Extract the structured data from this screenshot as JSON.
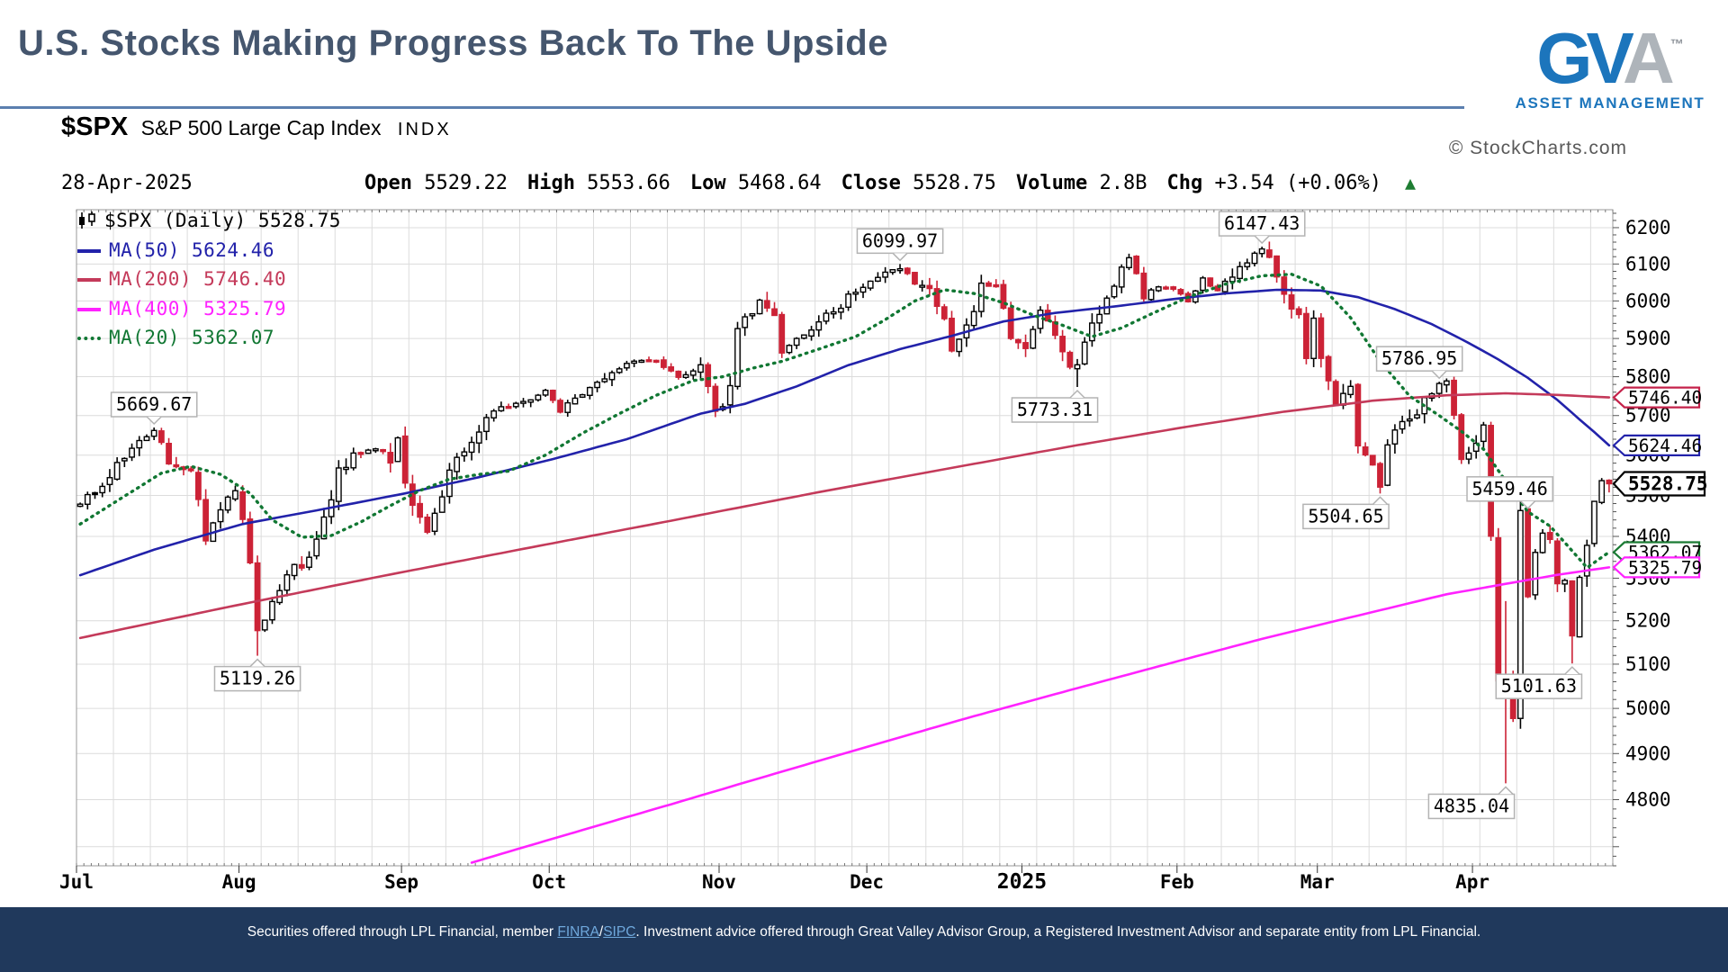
{
  "slide": {
    "title": "U.S. Stocks Making Progress Back To The Upside",
    "accent_color": "#45566E",
    "divider_color": "#5B7FAF"
  },
  "logo": {
    "letters": [
      "G",
      "V",
      "A"
    ],
    "tm": "™",
    "subtext": "ASSET MANAGEMENT",
    "blue": "#1C75BC",
    "gray": "#AEB4BA"
  },
  "chart": {
    "symbol": "$SPX",
    "name": "S&P 500 Large Cap Index",
    "exchange": "INDX",
    "attribution": "© StockCharts.com",
    "quote": {
      "date": "28-Apr-2025",
      "items": [
        {
          "label": "Open",
          "value": "5529.22"
        },
        {
          "label": "High",
          "value": "5553.66"
        },
        {
          "label": "Low",
          "value": "5468.64"
        },
        {
          "label": "Close",
          "value": "5528.75"
        },
        {
          "label": "Volume",
          "value": "2.8B"
        },
        {
          "label": "Chg",
          "value": "+3.54 (+0.06%)"
        }
      ],
      "arrow": "▲",
      "arrow_color": "#1E7D32"
    },
    "legend": {
      "series_label": "$SPX (Daily)",
      "series_value": "5528.75"
    }
  },
  "chart_data": {
    "type": "candlestick",
    "scale": "log",
    "title": "$SPX S&P 500 Large Cap Index (Daily) with 20/50/200/400-day moving averages, Jul 2024 – 28-Apr-2025",
    "ylim": [
      4660,
      6250
    ],
    "y_labels": {
      "from": 4800,
      "to": 6200,
      "step": 100
    },
    "num_days": 208,
    "grid_color": "#DCDCDC",
    "frame_color": "#999999",
    "months": [
      {
        "day": 0,
        "label": "Jul"
      },
      {
        "day": 22,
        "label": "Aug"
      },
      {
        "day": 44,
        "label": "Sep"
      },
      {
        "day": 64,
        "label": "Oct"
      },
      {
        "day": 87,
        "label": "Nov"
      },
      {
        "day": 107,
        "label": "Dec"
      },
      {
        "day": 128,
        "label": "2025",
        "bold": true
      },
      {
        "day": 149,
        "label": "Feb"
      },
      {
        "day": 168,
        "label": "Mar"
      },
      {
        "day": 189,
        "label": "Apr"
      }
    ],
    "close_anchors": [
      [
        0,
        5475
      ],
      [
        2,
        5510
      ],
      [
        5,
        5572
      ],
      [
        8,
        5633
      ],
      [
        10,
        5667
      ],
      [
        12,
        5588
      ],
      [
        15,
        5556
      ],
      [
        17,
        5399
      ],
      [
        19,
        5463
      ],
      [
        21,
        5522
      ],
      [
        22,
        5446
      ],
      [
        23,
        5346
      ],
      [
        24,
        5186
      ],
      [
        26,
        5240
      ],
      [
        28,
        5319
      ],
      [
        31,
        5344
      ],
      [
        33,
        5434
      ],
      [
        35,
        5555
      ],
      [
        37,
        5597
      ],
      [
        40,
        5616
      ],
      [
        42,
        5592
      ],
      [
        43,
        5648
      ],
      [
        44,
        5528
      ],
      [
        47,
        5408
      ],
      [
        50,
        5554
      ],
      [
        52,
        5618
      ],
      [
        56,
        5713
      ],
      [
        58,
        5722
      ],
      [
        61,
        5738
      ],
      [
        63,
        5762
      ],
      [
        65,
        5710
      ],
      [
        67,
        5751
      ],
      [
        70,
        5780
      ],
      [
        73,
        5815
      ],
      [
        75,
        5842
      ],
      [
        78,
        5841
      ],
      [
        81,
        5797
      ],
      [
        84,
        5832
      ],
      [
        86,
        5705
      ],
      [
        87,
        5712
      ],
      [
        88,
        5783
      ],
      [
        89,
        5929
      ],
      [
        91,
        5974
      ],
      [
        92,
        6001
      ],
      [
        94,
        5949
      ],
      [
        95,
        5871
      ],
      [
        98,
        5917
      ],
      [
        100,
        5949
      ],
      [
        103,
        5987
      ],
      [
        105,
        6032
      ],
      [
        107,
        6047
      ],
      [
        109,
        6075
      ],
      [
        111,
        6090
      ],
      [
        113,
        6052
      ],
      [
        115,
        6035
      ],
      [
        117,
        5947
      ],
      [
        118,
        5872
      ],
      [
        120,
        5931
      ],
      [
        122,
        6037
      ],
      [
        124,
        6040
      ],
      [
        126,
        5907
      ],
      [
        128,
        5869
      ],
      [
        130,
        5976
      ],
      [
        132,
        5918
      ],
      [
        134,
        5827
      ],
      [
        135,
        5836
      ],
      [
        137,
        5950
      ],
      [
        139,
        5996
      ],
      [
        141,
        6101
      ],
      [
        142,
        6118
      ],
      [
        144,
        6012
      ],
      [
        146,
        6039
      ],
      [
        148,
        6038
      ],
      [
        150,
        5994
      ],
      [
        152,
        6061
      ],
      [
        154,
        6026
      ],
      [
        156,
        6066
      ],
      [
        158,
        6114
      ],
      [
        160,
        6144
      ],
      [
        161,
        6130
      ],
      [
        163,
        6013
      ],
      [
        165,
        5956
      ],
      [
        166,
        5861
      ],
      [
        167,
        5954
      ],
      [
        168,
        5850
      ],
      [
        170,
        5738
      ],
      [
        172,
        5770
      ],
      [
        173,
        5615
      ],
      [
        175,
        5572
      ],
      [
        176,
        5521
      ],
      [
        177,
        5638
      ],
      [
        179,
        5675
      ],
      [
        181,
        5712
      ],
      [
        183,
        5767
      ],
      [
        184,
        5777
      ],
      [
        185,
        5776
      ],
      [
        186,
        5712
      ],
      [
        187,
        5581
      ],
      [
        188,
        5612
      ],
      [
        190,
        5671
      ],
      [
        191,
        5396
      ],
      [
        192,
        5074
      ],
      [
        193,
        5062
      ],
      [
        194,
        4983
      ],
      [
        195,
        5457
      ],
      [
        196,
        5268
      ],
      [
        197,
        5363
      ],
      [
        198,
        5406
      ],
      [
        199,
        5397
      ],
      [
        200,
        5276
      ],
      [
        201,
        5283
      ],
      [
        202,
        5158
      ],
      [
        203,
        5288
      ],
      [
        204,
        5376
      ],
      [
        205,
        5484
      ],
      [
        206,
        5525
      ],
      [
        207,
        5528.75
      ]
    ],
    "wick_overrides": {
      "10": {
        "high": 5669.67
      },
      "24": {
        "low": 5119.26
      },
      "111": {
        "high": 6099.97
      },
      "135": {
        "low": 5773.31
      },
      "160": {
        "high": 6147.43
      },
      "176": {
        "low": 5504.65
      },
      "184": {
        "high": 5786.95
      },
      "193": {
        "low": 4835.04,
        "high": 5246
      },
      "196": {
        "high": 5459.46
      },
      "202": {
        "low": 5101.63
      }
    },
    "moving_averages": [
      {
        "name": "MA(50)",
        "value": "5624.46",
        "color": "#2222AA",
        "style": "solid",
        "anchors": [
          [
            0,
            5307
          ],
          [
            10,
            5368
          ],
          [
            22,
            5430
          ],
          [
            34,
            5470
          ],
          [
            44,
            5505
          ],
          [
            54,
            5545
          ],
          [
            64,
            5590
          ],
          [
            74,
            5640
          ],
          [
            84,
            5705
          ],
          [
            90,
            5730
          ],
          [
            97,
            5775
          ],
          [
            104,
            5830
          ],
          [
            111,
            5872
          ],
          [
            118,
            5907
          ],
          [
            125,
            5945
          ],
          [
            132,
            5968
          ],
          [
            140,
            5985
          ],
          [
            148,
            6005
          ],
          [
            155,
            6020
          ],
          [
            162,
            6030
          ],
          [
            168,
            6028
          ],
          [
            173,
            6010
          ],
          [
            178,
            5978
          ],
          [
            183,
            5938
          ],
          [
            188,
            5888
          ],
          [
            192,
            5845
          ],
          [
            196,
            5797
          ],
          [
            200,
            5740
          ],
          [
            203,
            5690
          ],
          [
            205,
            5658
          ],
          [
            207,
            5624.46
          ]
        ]
      },
      {
        "name": "MA(200)",
        "value": "5746.40",
        "color": "#C43A5A",
        "style": "solid",
        "anchors": [
          [
            0,
            5160
          ],
          [
            20,
            5232
          ],
          [
            40,
            5302
          ],
          [
            60,
            5370
          ],
          [
            80,
            5438
          ],
          [
            100,
            5508
          ],
          [
            118,
            5568
          ],
          [
            135,
            5625
          ],
          [
            150,
            5672
          ],
          [
            163,
            5710
          ],
          [
            175,
            5738
          ],
          [
            185,
            5752
          ],
          [
            193,
            5757
          ],
          [
            200,
            5753
          ],
          [
            207,
            5746.4
          ]
        ]
      },
      {
        "name": "MA(400)",
        "value": "5325.79",
        "color": "#FF22FF",
        "style": "solid",
        "anchors": [
          [
            45,
            4630
          ],
          [
            80,
            4790
          ],
          [
            120,
            4978
          ],
          [
            160,
            5158
          ],
          [
            185,
            5262
          ],
          [
            200,
            5308
          ],
          [
            207,
            5325.79
          ]
        ]
      },
      {
        "name": "MA(20)",
        "value": "5362.07",
        "color": "#117733",
        "style": "dotted",
        "anchors": [
          [
            0,
            5430
          ],
          [
            6,
            5498
          ],
          [
            11,
            5555
          ],
          [
            15,
            5572
          ],
          [
            19,
            5552
          ],
          [
            23,
            5505
          ],
          [
            26,
            5440
          ],
          [
            30,
            5398
          ],
          [
            34,
            5402
          ],
          [
            38,
            5435
          ],
          [
            42,
            5475
          ],
          [
            46,
            5512
          ],
          [
            50,
            5540
          ],
          [
            54,
            5552
          ],
          [
            58,
            5560
          ],
          [
            63,
            5600
          ],
          [
            68,
            5655
          ],
          [
            73,
            5705
          ],
          [
            78,
            5752
          ],
          [
            83,
            5790
          ],
          [
            87,
            5800
          ],
          [
            91,
            5822
          ],
          [
            95,
            5840
          ],
          [
            100,
            5872
          ],
          [
            105,
            5905
          ],
          [
            109,
            5950
          ],
          [
            113,
            6000
          ],
          [
            117,
            6030
          ],
          [
            121,
            6020
          ],
          [
            125,
            5995
          ],
          [
            129,
            5962
          ],
          [
            133,
            5935
          ],
          [
            137,
            5905
          ],
          [
            141,
            5928
          ],
          [
            145,
            5965
          ],
          [
            150,
            6010
          ],
          [
            155,
            6045
          ],
          [
            160,
            6068
          ],
          [
            164,
            6072
          ],
          [
            168,
            6040
          ],
          [
            172,
            5955
          ],
          [
            176,
            5840
          ],
          [
            180,
            5750
          ],
          [
            184,
            5700
          ],
          [
            187,
            5660
          ],
          [
            190,
            5615
          ],
          [
            193,
            5535
          ],
          [
            196,
            5460
          ],
          [
            199,
            5425
          ],
          [
            202,
            5365
          ],
          [
            204,
            5325
          ],
          [
            207,
            5362.07
          ]
        ]
      }
    ],
    "annotations": [
      {
        "label": "5669.67",
        "day": 10,
        "value": 5669.67,
        "side": "above",
        "dx": 0
      },
      {
        "label": "5119.26",
        "day": 24,
        "value": 5119.26,
        "side": "below",
        "dx": 0
      },
      {
        "label": "6099.97",
        "day": 111,
        "value": 6099.97,
        "side": "above",
        "dx": 0
      },
      {
        "label": "5773.31",
        "day": 135,
        "value": 5773.31,
        "side": "below",
        "dx": -25
      },
      {
        "label": "6147.43",
        "day": 160,
        "value": 6147.43,
        "side": "above",
        "dx": 0
      },
      {
        "label": "5504.65",
        "day": 176,
        "value": 5504.65,
        "side": "below",
        "dx": -38
      },
      {
        "label": "5786.95",
        "day": 184,
        "value": 5786.95,
        "side": "above",
        "dx": -22
      },
      {
        "label": "4835.04",
        "day": 193,
        "value": 4835.04,
        "side": "below",
        "dx": -38
      },
      {
        "label": "5459.46",
        "day": 196,
        "value": 5459.46,
        "side": "above",
        "dx": -20
      },
      {
        "label": "5101.63",
        "day": 202,
        "value": 5101.63,
        "side": "below",
        "dx": -37
      }
    ],
    "axis_tags": [
      {
        "label": "5746.40",
        "value": 5746.4,
        "color": "#C4224A",
        "bold": false
      },
      {
        "label": "5624.46",
        "value": 5624.46,
        "color": "#2222AA",
        "bold": false
      },
      {
        "label": "5528.75",
        "value": 5528.75,
        "color": "#000000",
        "bold": true
      },
      {
        "label": "5362.07",
        "value": 5362.07,
        "color": "#1A7A33",
        "bold": false
      },
      {
        "label": "5325.79",
        "value": 5325.79,
        "color": "#FF22FF",
        "bold": false
      }
    ],
    "candle_colors": {
      "up_fill": "#FFFFFF",
      "down_fill": "#CC2236",
      "neutral_fill": "#000000",
      "outline": "#000000"
    }
  },
  "footer": {
    "text_before": "Securities offered through LPL Financial, member ",
    "link_finra": "FINRA",
    "link_sep": "/",
    "link_sipc": "SIPC",
    "text_after": ". Investment advice offered through Great Valley Advisor Group, a Registered Investment Advisor and separate entity from LPL Financial.",
    "bg": "#20395C",
    "link_color": "#6FA8DC"
  }
}
